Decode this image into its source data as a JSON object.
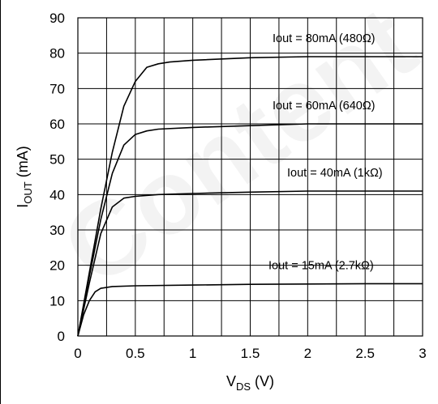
{
  "chart_data": {
    "type": "line",
    "title": "",
    "xlabel": {
      "main": "V",
      "sub": "DS",
      "unit": " (V)"
    },
    "ylabel": {
      "main": "I",
      "sub": "OUT",
      "unit": " (mA)"
    },
    "xlim": [
      0,
      3
    ],
    "ylim": [
      0,
      90
    ],
    "x_ticks": [
      "0",
      "0.5",
      "1",
      "1.5",
      "2",
      "2.5",
      "3"
    ],
    "y_ticks": [
      "0",
      "10",
      "20",
      "30",
      "40",
      "50",
      "60",
      "70",
      "80",
      "90"
    ],
    "grid": true,
    "series": [
      {
        "name": "Iout = 80mA (480Ω)",
        "x": [
          0,
          0.1,
          0.2,
          0.3,
          0.4,
          0.5,
          0.6,
          0.7,
          0.8,
          1.0,
          1.5,
          2.0,
          2.5,
          3.0
        ],
        "y": [
          0,
          18,
          36,
          52,
          65,
          72,
          76,
          77,
          77.5,
          78,
          78.7,
          79,
          79,
          79
        ]
      },
      {
        "name": "Iout = 60mA (640Ω)",
        "x": [
          0,
          0.1,
          0.2,
          0.3,
          0.4,
          0.5,
          0.6,
          0.7,
          1.0,
          1.5,
          2.0,
          2.5,
          3.0
        ],
        "y": [
          0,
          17,
          33,
          46,
          54,
          57,
          58,
          58.5,
          59,
          59.5,
          60,
          60,
          60
        ]
      },
      {
        "name": "Iout = 40mA (1kΩ)",
        "x": [
          0,
          0.1,
          0.2,
          0.3,
          0.4,
          0.5,
          0.7,
          1.0,
          1.5,
          2.0,
          2.5,
          3.0
        ],
        "y": [
          0,
          15,
          29,
          36.5,
          39,
          39.5,
          40,
          40.3,
          40.7,
          41,
          41,
          41
        ]
      },
      {
        "name": "Iout = 15mA (2.7kΩ)",
        "x": [
          0,
          0.05,
          0.1,
          0.15,
          0.2,
          0.3,
          0.5,
          1.0,
          1.5,
          2.0,
          2.5,
          3.0
        ],
        "y": [
          0,
          6,
          10,
          12.5,
          13.5,
          14,
          14.2,
          14.4,
          14.6,
          14.7,
          14.8,
          14.8
        ]
      }
    ]
  },
  "watermark": {
    "text": "Content",
    "color": "#e8e8e8"
  },
  "colors": {
    "lines": "#000000",
    "grid": "#000000",
    "background": "#ffffff"
  }
}
